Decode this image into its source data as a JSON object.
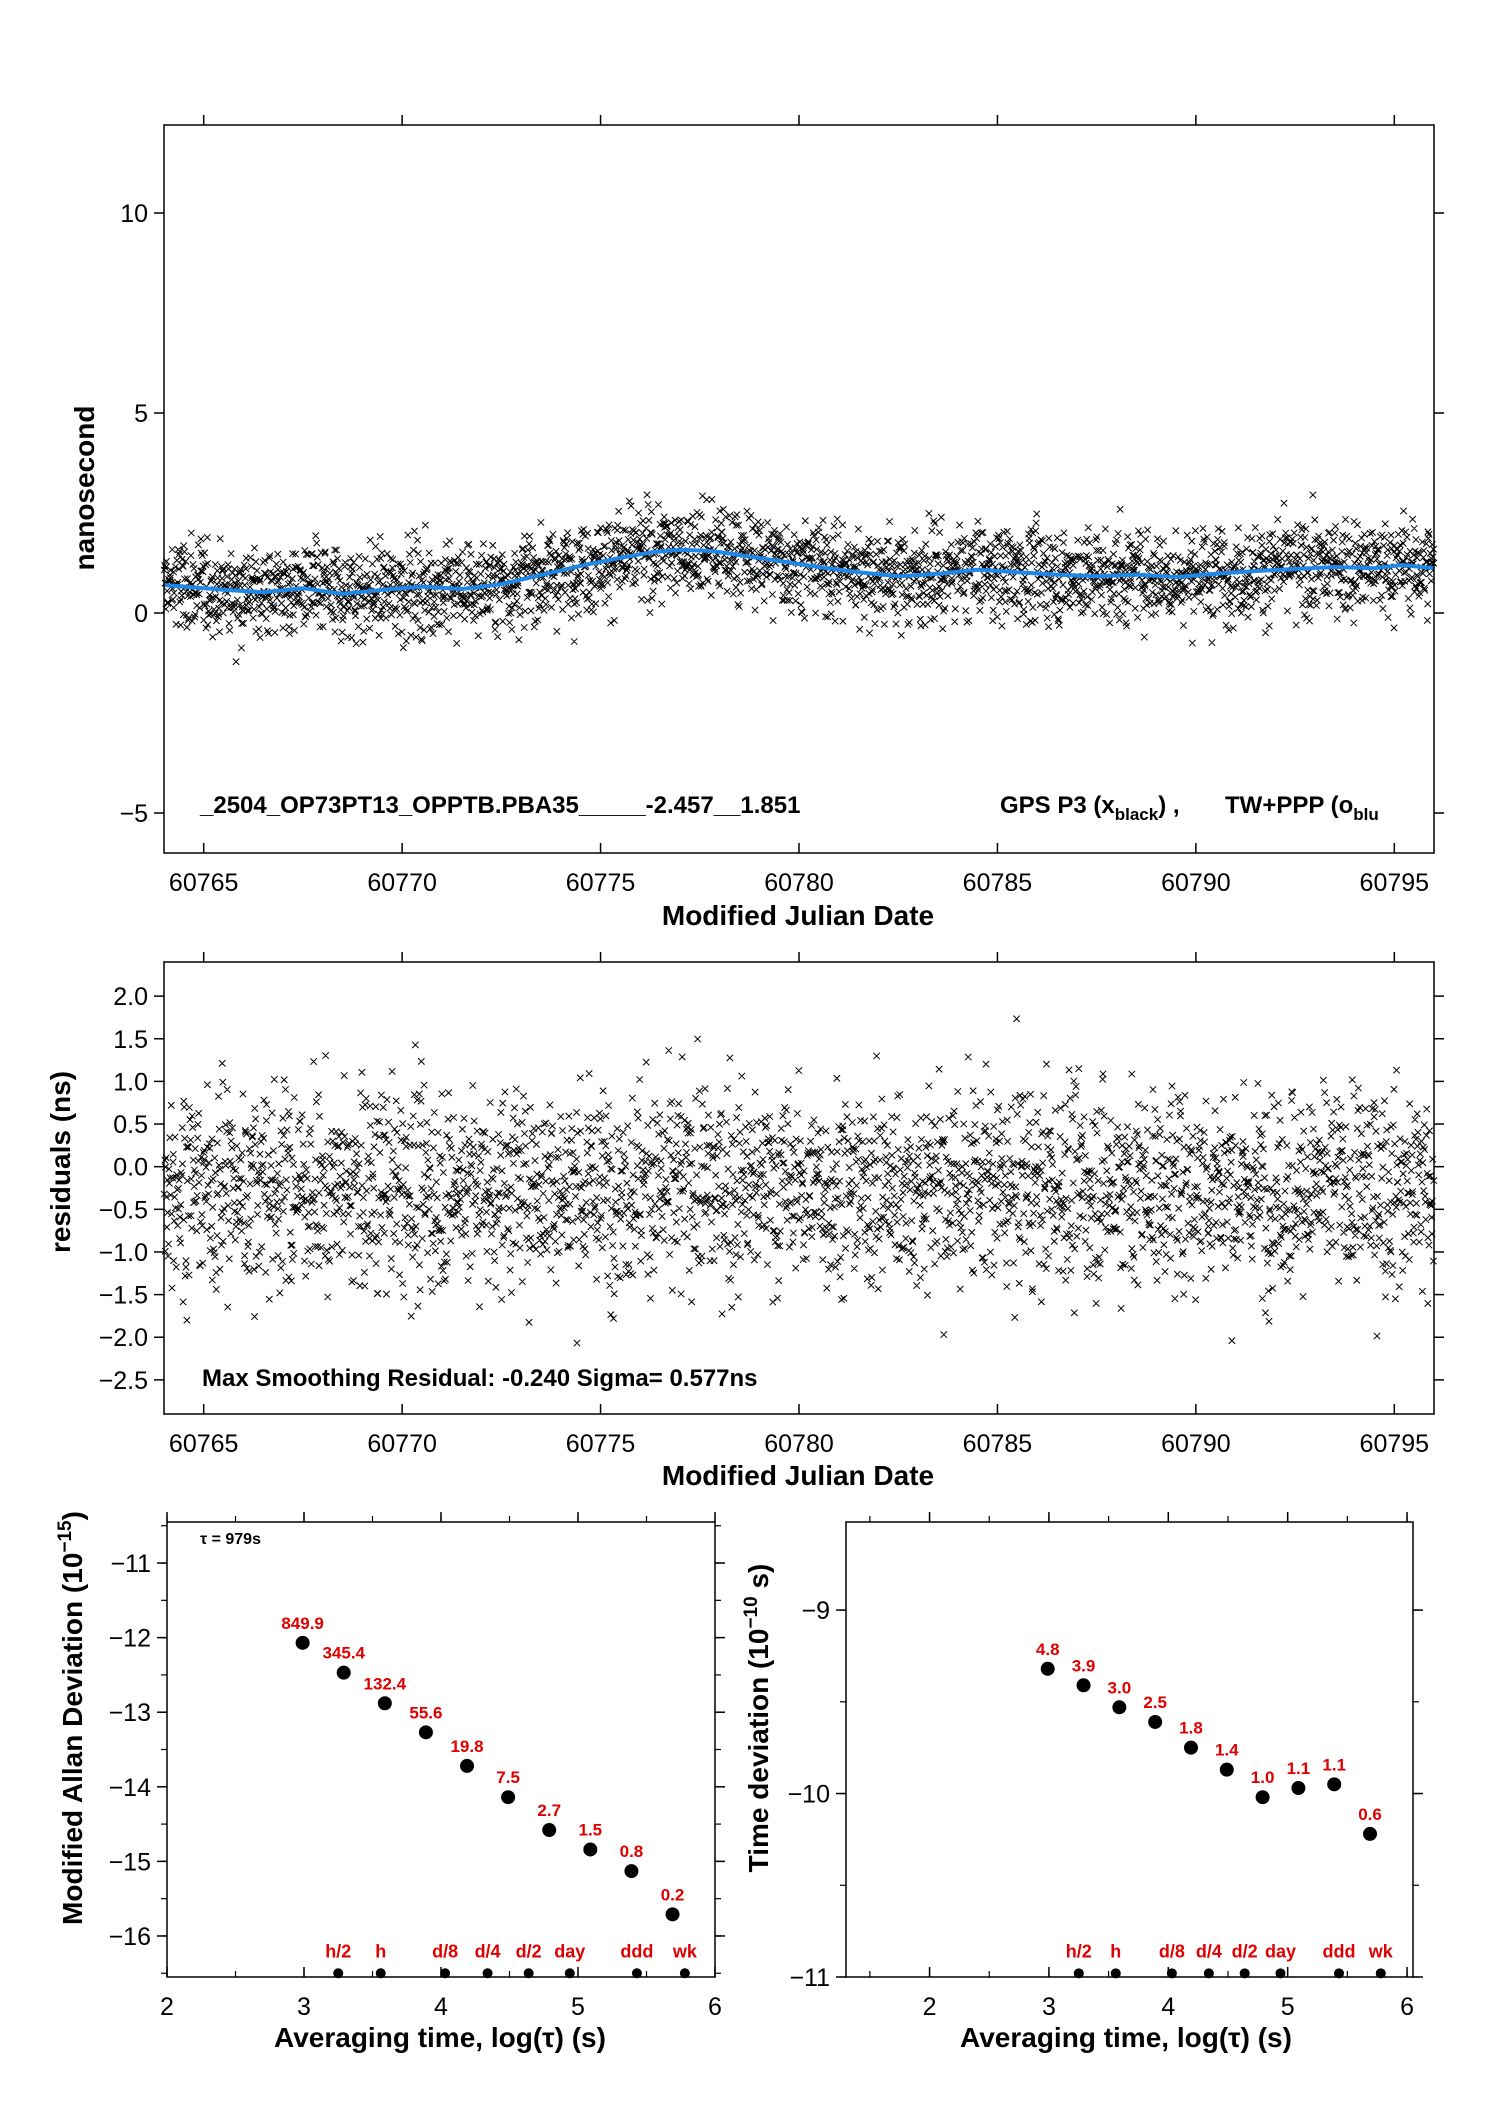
{
  "colors": {
    "scatter": "#000000",
    "smooth": "#1f87e6",
    "labels": "#e00000",
    "axis": "#000000"
  },
  "chart_data": [
    {
      "id": "top",
      "type": "scatter",
      "xlabel": "Modified Julian Date",
      "ylabel": "nanosecond",
      "xlim": [
        60764.0,
        60796.0
      ],
      "ylim": [
        -6.0,
        12.2
      ],
      "xticks": [
        60765,
        60770,
        60775,
        60780,
        60785,
        60790,
        60795
      ],
      "yticks": [
        -5,
        0,
        5,
        10
      ],
      "ytick_labels": [
        "−5",
        "0",
        "5",
        "10"
      ],
      "annotation_main": "_2504_OP73PT13_OPPTB.PBA35_____-2.457__1.851",
      "annotation_gps": "GPS P3 (x",
      "annotation_gps_sub": "black",
      "annotation_gps_end": ") ,",
      "annotation_tw": "TW+PPP (o",
      "annotation_tw_sub": "blu",
      "series": [
        {
          "name": "GPS P3",
          "marker": "x",
          "n_points": 2900,
          "spread_sigma": 0.58
        },
        {
          "name": "TW+PPP",
          "line": true,
          "x": [
            60764.0,
            60765.5,
            60766.5,
            60767.5,
            60768.5,
            60769.5,
            60770.5,
            60771.5,
            60772.5,
            60773.5,
            60774.5,
            60775.5,
            60776.3,
            60777.0,
            60777.8,
            60778.5,
            60779.5,
            60780.5,
            60781.5,
            60782.5,
            60783.5,
            60784.5,
            60785.5,
            60786.5,
            60787.5,
            60788.5,
            60789.5,
            60790.5,
            60791.5,
            60792.5,
            60793.5,
            60794.5,
            60795.2,
            60796.0
          ],
          "y": [
            0.7,
            0.58,
            0.52,
            0.62,
            0.48,
            0.58,
            0.66,
            0.6,
            0.72,
            0.95,
            1.18,
            1.38,
            1.52,
            1.58,
            1.55,
            1.45,
            1.3,
            1.15,
            1.02,
            0.92,
            0.98,
            1.08,
            1.02,
            0.96,
            0.92,
            0.96,
            0.9,
            0.98,
            1.05,
            1.1,
            1.15,
            1.12,
            1.2,
            1.12
          ]
        }
      ]
    },
    {
      "id": "mid",
      "type": "scatter",
      "xlabel": "Modified Julian Date",
      "ylabel": "residuals (ns)",
      "xlim": [
        60764.0,
        60796.0
      ],
      "ylim": [
        -2.9,
        2.4
      ],
      "xticks": [
        60765,
        60770,
        60775,
        60780,
        60785,
        60790,
        60795
      ],
      "yticks": [
        -2.5,
        -2.0,
        -1.5,
        -1.0,
        -0.5,
        0.0,
        0.5,
        1.0,
        1.5,
        2.0
      ],
      "ytick_labels": [
        "−2.5",
        "−2.0",
        "−1.5",
        "−1.0",
        "−0.5",
        "0.0",
        "0.5",
        "1.0",
        "1.5",
        "2.0"
      ],
      "annotation": "Max Smoothing Residual: -0.240  Sigma= 0.577ns",
      "series": [
        {
          "name": "residuals",
          "marker": "x",
          "n_points": 2900,
          "spread_sigma": 0.577
        }
      ]
    },
    {
      "id": "mdev",
      "type": "scatter",
      "xlabel": "Averaging time, log(τ) (s)",
      "ylabel_main": "Modified Allan Deviation (10",
      "ylabel_sup": "−15",
      "ylabel_end": ")",
      "xlim": [
        2,
        6
      ],
      "ylim": [
        -16.55,
        -10.45
      ],
      "xticks": [
        2,
        3,
        4,
        5,
        6
      ],
      "yticks": [
        -16,
        -15,
        -14,
        -13,
        -12,
        -11
      ],
      "ytick_labels": [
        "−16",
        "−15",
        "−14",
        "−13",
        "−12",
        "−11"
      ],
      "tau_label": "τ = 979s",
      "x": [
        2.99,
        3.29,
        3.59,
        3.89,
        4.19,
        4.49,
        4.79,
        5.09,
        5.39,
        5.69
      ],
      "y": [
        -12.07,
        -12.47,
        -12.88,
        -13.27,
        -13.72,
        -14.14,
        -14.58,
        -14.84,
        -15.13,
        -15.71
      ],
      "labels": [
        "849.9",
        "345.4",
        "132.4",
        "55.6",
        "19.8",
        "7.5",
        "2.7",
        "1.5",
        "0.8",
        "0.2"
      ],
      "markers": {
        "x": [
          3.25,
          3.56,
          4.03,
          4.34,
          4.64,
          4.94,
          5.43,
          5.78
        ],
        "labels": [
          "h/2",
          "h",
          "d/8",
          "d/4",
          "d/2",
          "day",
          "ddd",
          "wk"
        ],
        "y": -16.5
      }
    },
    {
      "id": "tdev",
      "type": "scatter",
      "xlabel": "Averaging time, log(τ) (s)",
      "ylabel_main": "Time deviation (10",
      "ylabel_sup": "−10",
      "ylabel_end": " s)",
      "xlim": [
        1.3,
        6.05
      ],
      "ylim": [
        -11.0,
        -8.52
      ],
      "xticks": [
        2,
        3,
        4,
        5,
        6
      ],
      "yticks": [
        -11,
        -10,
        -9
      ],
      "ytick_labels": [
        "−11",
        "−10",
        "−9"
      ],
      "x": [
        2.99,
        3.29,
        3.59,
        3.89,
        4.19,
        4.49,
        4.79,
        5.09,
        5.39,
        5.69
      ],
      "y": [
        -9.32,
        -9.41,
        -9.53,
        -9.61,
        -9.75,
        -9.87,
        -10.02,
        -9.97,
        -9.95,
        -10.22
      ],
      "labels": [
        "4.8",
        "3.9",
        "3.0",
        "2.5",
        "1.8",
        "1.4",
        "1.0",
        "1.1",
        "1.1",
        "0.6"
      ],
      "markers": {
        "x": [
          3.25,
          3.56,
          4.03,
          4.34,
          4.64,
          4.94,
          5.43,
          5.78
        ],
        "labels": [
          "h/2",
          "h",
          "d/8",
          "d/4",
          "d/2",
          "day",
          "ddd",
          "wk"
        ],
        "y": -10.98
      }
    }
  ]
}
